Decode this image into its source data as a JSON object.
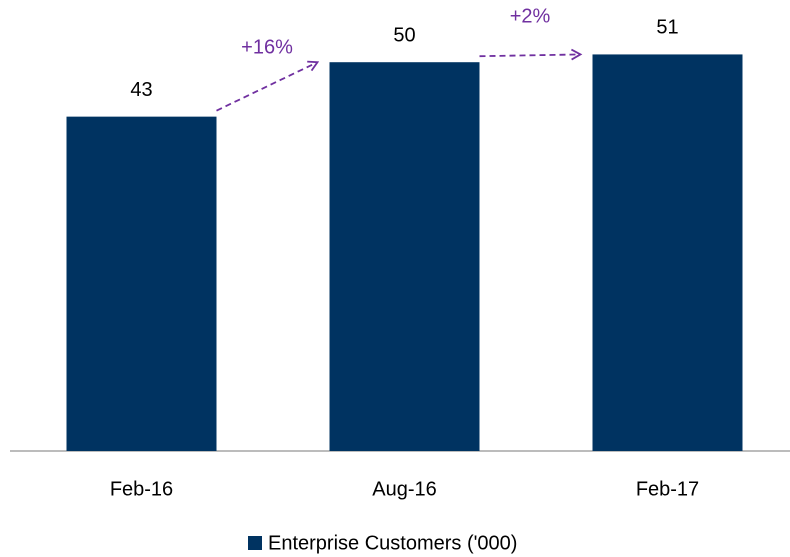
{
  "chart_data": {
    "type": "bar",
    "categories": [
      "Feb-16",
      "Aug-16",
      "Feb-17"
    ],
    "series": [
      {
        "name": "Enterprise Customers ('000)",
        "color": "#003361",
        "values": [
          43,
          50,
          51
        ]
      }
    ],
    "ylim": [
      0,
      58
    ],
    "annotations": [
      "+16%",
      "+2%"
    ],
    "annotation_color": "#7030a0",
    "legend": "bottom"
  }
}
